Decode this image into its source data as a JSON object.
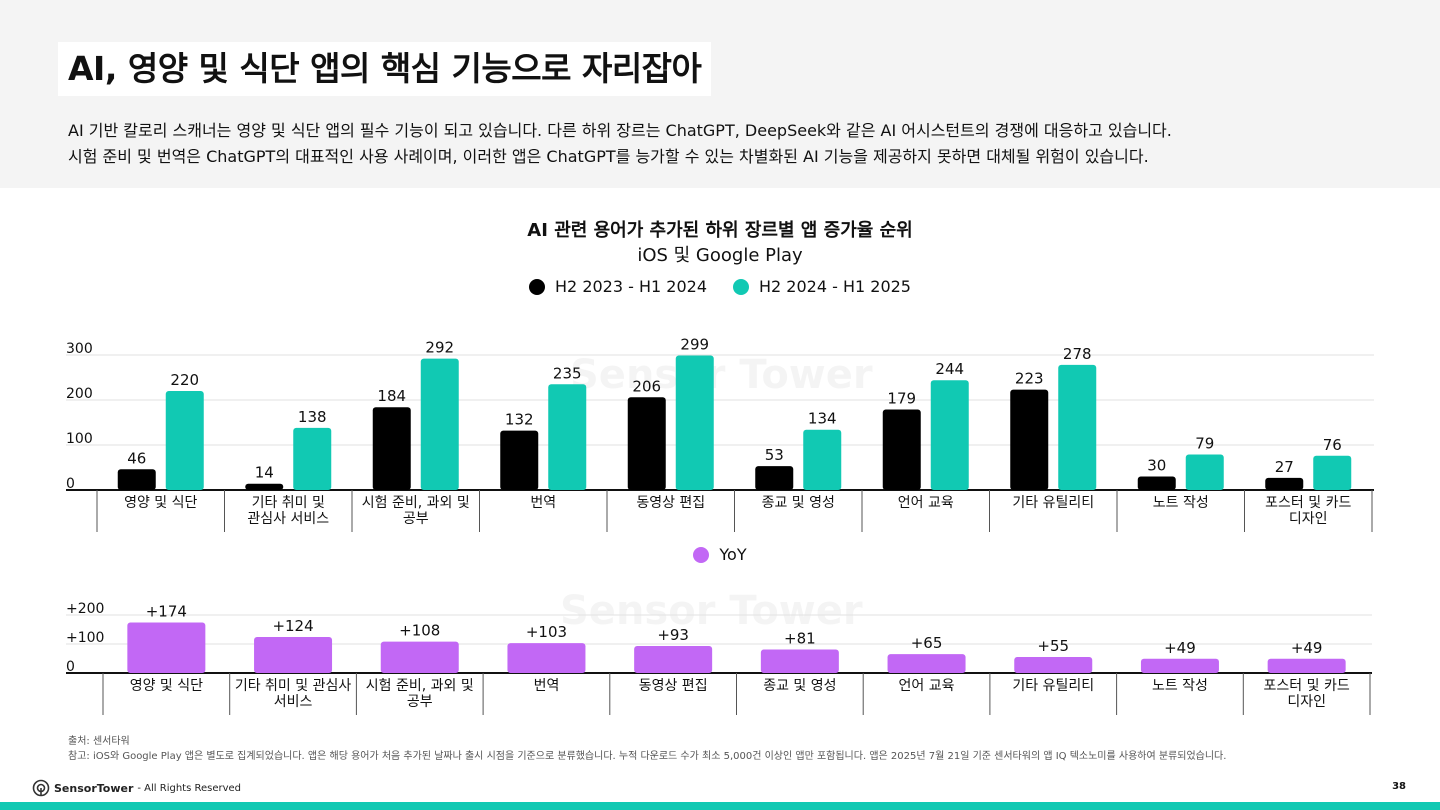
{
  "title": "AI, 영양 및 식단 앱의 핵심 기능으로 자리잡아",
  "intro_lines": [
    "AI 기반 칼로리 스캐너는 영양 및 식단 앱의 필수 기능이 되고 있습니다. 다른 하위 장르는 ChatGPT, DeepSeek와 같은 AI 어시스턴트의 경쟁에 대응하고 있습니다.",
    "시험 준비 및 번역은 ChatGPT의 대표적인 사용 사례이며, 이러한 앱은 ChatGPT를 능가할 수 있는 차별화된 AI 기능을 제공하지 못하면 대체될 위험이 있습니다."
  ],
  "watermark_text": "Sensor Tower",
  "chart_data": [
    {
      "type": "bar",
      "title": "AI 관련 용어가 추가된 하위 장르별 앱 증가율 순위",
      "subtitle": "iOS 및 Google Play",
      "categories": [
        [
          "영양 및 식단"
        ],
        [
          "기타 취미 및",
          "관심사 서비스"
        ],
        [
          "시험 준비, 과외 및",
          "공부"
        ],
        [
          "번역"
        ],
        [
          "동영상 편집"
        ],
        [
          "종교 및 영성"
        ],
        [
          "언어 교육"
        ],
        [
          "기타 유틸리티"
        ],
        [
          "노트 작성"
        ],
        [
          "포스터 및 카드",
          "디자인"
        ]
      ],
      "series": [
        {
          "name": "H2 2023 - H1 2024",
          "color": "#000000",
          "values": [
            46,
            14,
            184,
            132,
            206,
            53,
            179,
            223,
            30,
            27
          ]
        },
        {
          "name": "H2 2024 - H1 2025",
          "color": "#11c9b3",
          "values": [
            220,
            138,
            292,
            235,
            299,
            134,
            244,
            278,
            79,
            76
          ]
        }
      ],
      "ylim": [
        0,
        300
      ],
      "yticks": [
        "0",
        "100",
        "200",
        "300"
      ],
      "ytick_values": [
        0,
        100,
        200,
        300
      ],
      "grid": true,
      "legend": "top-center"
    },
    {
      "type": "bar",
      "categories": [
        [
          "영양 및 식단"
        ],
        [
          "기타 취미 및 관심사",
          "서비스"
        ],
        [
          "시험 준비, 과외 및",
          "공부"
        ],
        [
          "번역"
        ],
        [
          "동영상 편집"
        ],
        [
          "종교 및 영성"
        ],
        [
          "언어 교육"
        ],
        [
          "기타 유틸리티"
        ],
        [
          "노트 작성"
        ],
        [
          "포스터 및 카드",
          "디자인"
        ]
      ],
      "series": [
        {
          "name": "YoY",
          "color": "#c268f5",
          "values": [
            174,
            124,
            108,
            103,
            93,
            81,
            65,
            55,
            49,
            49
          ],
          "labels": [
            "+174",
            "+124",
            "+108",
            "+103",
            "+93",
            "+81",
            "+65",
            "+55",
            "+49",
            "+49"
          ]
        }
      ],
      "ylim": [
        0,
        200
      ],
      "yticks": [
        "0",
        "+100",
        "+200"
      ],
      "ytick_values": [
        0,
        100,
        200
      ],
      "grid": true,
      "legend": "top-center"
    }
  ],
  "notes": {
    "source": "출처: 센서타워",
    "reference": "참고: iOS와 Google Play 앱은 별도로 집계되었습니다. 앱은 해당 용어가 처음 추가된 날짜나 출시 시점을 기준으로 분류했습니다. 누적 다운로드 수가 최소 5,000건 이상인 앱만 포함됩니다. 앱은 2025년 7월 21일 기준 센서타워의 앱 IQ 텍소노미를 사용하여 분류되었습니다."
  },
  "footer": {
    "brand": "SensorTower",
    "rights": "- All Rights Reserved",
    "page_number": "38"
  },
  "colors": {
    "accent": "#11c9b3",
    "header_bg": "#f4f4f4",
    "yoy": "#c268f5"
  }
}
